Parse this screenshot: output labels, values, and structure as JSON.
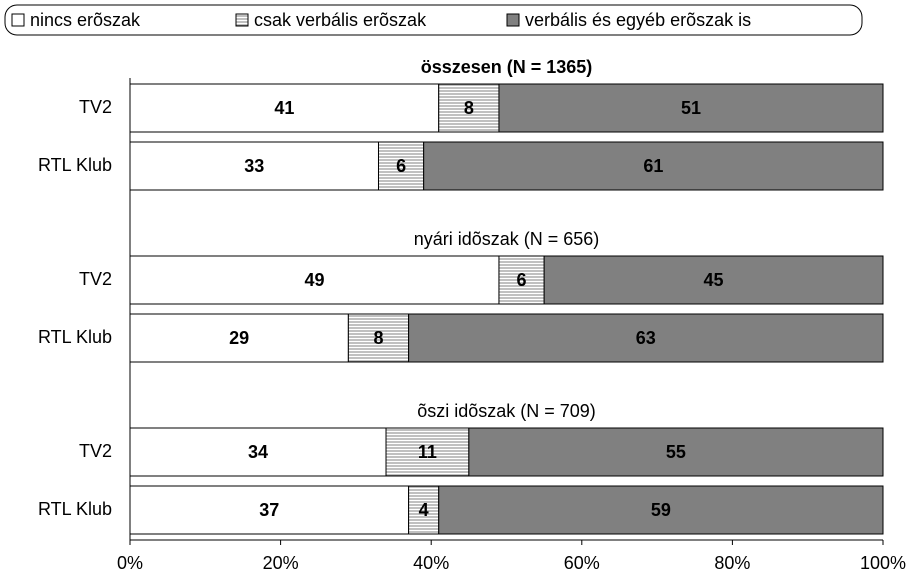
{
  "chart_data": {
    "type": "bar",
    "orientation": "horizontal",
    "stacked": true,
    "groups": [
      {
        "title": "összesen (N = 1365)",
        "bold": true
      },
      {
        "title": "nyári idõszak (N = 656)",
        "bold": false
      },
      {
        "title": "õszi idõszak (N = 709)",
        "bold": false
      }
    ],
    "categories": [
      "TV2",
      "RTL Klub",
      "TV2",
      "RTL Klub",
      "TV2",
      "RTL Klub"
    ],
    "series": [
      {
        "name": "nincs erõszak",
        "color": "#ffffff",
        "values": [
          41,
          33,
          49,
          29,
          34,
          37
        ]
      },
      {
        "name": "csak verbális erõszak",
        "color": "#d9d9d9",
        "pattern": "horizontal-lines",
        "values": [
          8,
          6,
          6,
          8,
          11,
          4
        ]
      },
      {
        "name": "verbális és egyéb erõszak is",
        "color": "#808080",
        "values": [
          51,
          61,
          45,
          63,
          55,
          59
        ]
      }
    ],
    "xlim": [
      0,
      100
    ],
    "xticks": [
      {
        "value": 0,
        "label": "0%"
      },
      {
        "value": 20,
        "label": "20%"
      },
      {
        "value": 40,
        "label": "40%"
      },
      {
        "value": 60,
        "label": "60%"
      },
      {
        "value": 80,
        "label": "80%"
      },
      {
        "value": 100,
        "label": "100%"
      }
    ],
    "legend": "top"
  }
}
